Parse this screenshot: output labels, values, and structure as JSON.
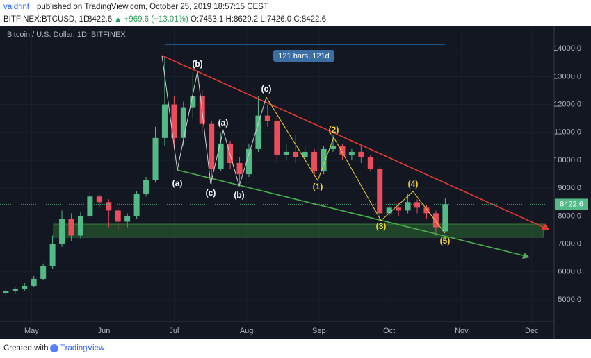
{
  "header": {
    "user": "valdrint",
    "published": "published on TradingView.com, October 25, 2019 18:57:15 CEST",
    "symbol": "BITFINEX:BTCUSD, 1D",
    "price": "8422.6",
    "change": "▲ +969.6 (+13.01%)",
    "ohlc": "O:7453.1 H:8629.2 L:7426.0 C:8422.6"
  },
  "footer": {
    "created": "Created with",
    "brand": "TradingView"
  },
  "chart_data": {
    "type": "candlestick",
    "title": "Bitcoin / U.S. Dollar, 1D, BITFINEX",
    "measure_label": "121 bars, 121d",
    "up_color": "#53b987",
    "down_color": "#eb4d5c",
    "grid": true,
    "x": [
      -11,
      -7,
      -3,
      1,
      5,
      9,
      13,
      17,
      21,
      25,
      29,
      33,
      37,
      41,
      45,
      49,
      53,
      57,
      61,
      65,
      69,
      73,
      77,
      81,
      85,
      89,
      93,
      97,
      101,
      105,
      109,
      113,
      117,
      121,
      125,
      129,
      133,
      137,
      141,
      145,
      149,
      153,
      157,
      161,
      165,
      169,
      173,
      177
    ],
    "open": [
      5250,
      5300,
      5400,
      5500,
      5750,
      6200,
      7000,
      7900,
      7300,
      8000,
      8700,
      8500,
      8200,
      7800,
      8000,
      8800,
      9300,
      10800,
      12000,
      10800,
      11900,
      12300,
      11300,
      9700,
      10600,
      9900,
      9500,
      10400,
      11600,
      11400,
      10200,
      10300,
      10100,
      10300,
      9600,
      10400,
      10500,
      10200,
      10300,
      10100,
      9700,
      8100,
      8300,
      8200,
      8500,
      8300,
      8100,
      7453.1
    ],
    "high": [
      5380,
      5450,
      5600,
      5850,
      6300,
      7300,
      8200,
      8100,
      8150,
      8900,
      8800,
      8600,
      8300,
      8100,
      8900,
      9400,
      11200,
      13700,
      12300,
      12100,
      13150,
      12500,
      11400,
      11000,
      10700,
      10100,
      10600,
      12300,
      12000,
      11600,
      10600,
      10900,
      10500,
      10400,
      10500,
      10900,
      10600,
      10400,
      10500,
      10200,
      9800,
      8500,
      8500,
      8800,
      8600,
      8400,
      8200,
      8629.2
    ],
    "low": [
      5150,
      5200,
      5300,
      5450,
      5700,
      6100,
      6900,
      7100,
      7200,
      7900,
      8300,
      7600,
      7500,
      7600,
      7900,
      8700,
      9200,
      10500,
      10400,
      10500,
      11500,
      11000,
      9150,
      9600,
      9700,
      9100,
      9400,
      10300,
      11200,
      9900,
      10000,
      9900,
      9900,
      9400,
      9500,
      10300,
      10000,
      10000,
      9900,
      9600,
      7800,
      8000,
      8000,
      8100,
      8100,
      7900,
      7300,
      7426.0
    ],
    "close": [
      5300,
      5400,
      5500,
      5750,
      6200,
      7000,
      7900,
      7300,
      8000,
      8700,
      8500,
      8200,
      7800,
      8000,
      8800,
      9300,
      10800,
      12000,
      10800,
      11900,
      12300,
      11300,
      9700,
      10600,
      9900,
      9500,
      10400,
      11600,
      11400,
      10200,
      10300,
      10100,
      10300,
      9600,
      10400,
      10500,
      10200,
      10300,
      10100,
      9700,
      8100,
      8300,
      8200,
      8500,
      8300,
      8100,
      7600,
      8422.6
    ],
    "xlim": [
      -12,
      223
    ],
    "ylim": [
      4230,
      14750
    ],
    "xticks": [
      {
        "value": 0,
        "label": "May"
      },
      {
        "value": 31,
        "label": "Jun"
      },
      {
        "value": 61,
        "label": "Jul"
      },
      {
        "value": 92,
        "label": "Aug"
      },
      {
        "value": 123,
        "label": "Sep"
      },
      {
        "value": 153,
        "label": "Oct"
      },
      {
        "value": 184,
        "label": "Nov"
      },
      {
        "value": 214,
        "label": "Dec"
      }
    ],
    "yticks": [
      {
        "value": 5000,
        "label": "5000.0"
      },
      {
        "value": 6000,
        "label": "6000.0"
      },
      {
        "value": 7000,
        "label": "7000.0"
      },
      {
        "value": 8000,
        "label": "8000.0"
      },
      {
        "value": 9000,
        "label": "9000.0"
      },
      {
        "value": 10000,
        "label": "10000.0"
      },
      {
        "value": 11000,
        "label": "11000.0"
      },
      {
        "value": 12000,
        "label": "12000.0"
      },
      {
        "value": 13000,
        "label": "13000.0"
      },
      {
        "value": 14000,
        "label": "14000.0"
      }
    ],
    "annotations": [
      {
        "text": "(b)",
        "color": "#ffffff"
      },
      {
        "text": "(a)",
        "color": "#ffffff"
      },
      {
        "text": "(c)",
        "color": "#ffffff"
      },
      {
        "text": "(a)",
        "color": "#ffffff"
      },
      {
        "text": "(b)",
        "color": "#ffffff"
      },
      {
        "text": "(c)",
        "color": "#ffffff"
      },
      {
        "text": "(1)",
        "color": "#f0d23c"
      },
      {
        "text": "(2)",
        "color": "#f0d23c"
      },
      {
        "text": "(3)",
        "color": "#f0d23c"
      },
      {
        "text": "(4)",
        "color": "#f0d23c"
      },
      {
        "text": "(5)",
        "color": "#f0d23c"
      }
    ]
  }
}
